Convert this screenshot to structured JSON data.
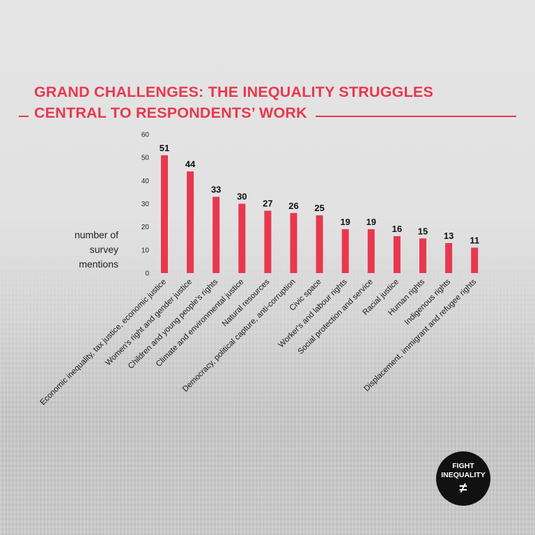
{
  "chart_data": {
    "type": "bar",
    "title_line1": "GRAND CHALLENGES: THE INEQUALITY STRUGGLES",
    "title_line2": "CENTRAL TO RESPONDENTS’ WORK",
    "ylabel": "number of survey mentions",
    "ylim": [
      0,
      60
    ],
    "yticks": [
      0,
      10,
      20,
      30,
      40,
      50,
      60
    ],
    "categories": [
      "Economic inequality, tax justice, economic justice",
      "Women's right and gender justice",
      "Children and young people's rights",
      "Climate and environmental justice",
      "Natural resources",
      "Democracy, political capture, anti-corruption",
      "Civic space",
      "Worker's and labour rights",
      "Social protection and service",
      "Racial justice",
      "Human rights",
      "Indigenous rights",
      "Displacement, immigrant and refugee rights"
    ],
    "values": [
      51,
      44,
      33,
      30,
      27,
      26,
      25,
      19,
      19,
      16,
      15,
      13,
      11
    ],
    "bar_color": "#e8384f",
    "grid": false
  },
  "logo": {
    "line1": "FIGHT",
    "line2": "INEQUALITY",
    "symbol": "≠"
  }
}
